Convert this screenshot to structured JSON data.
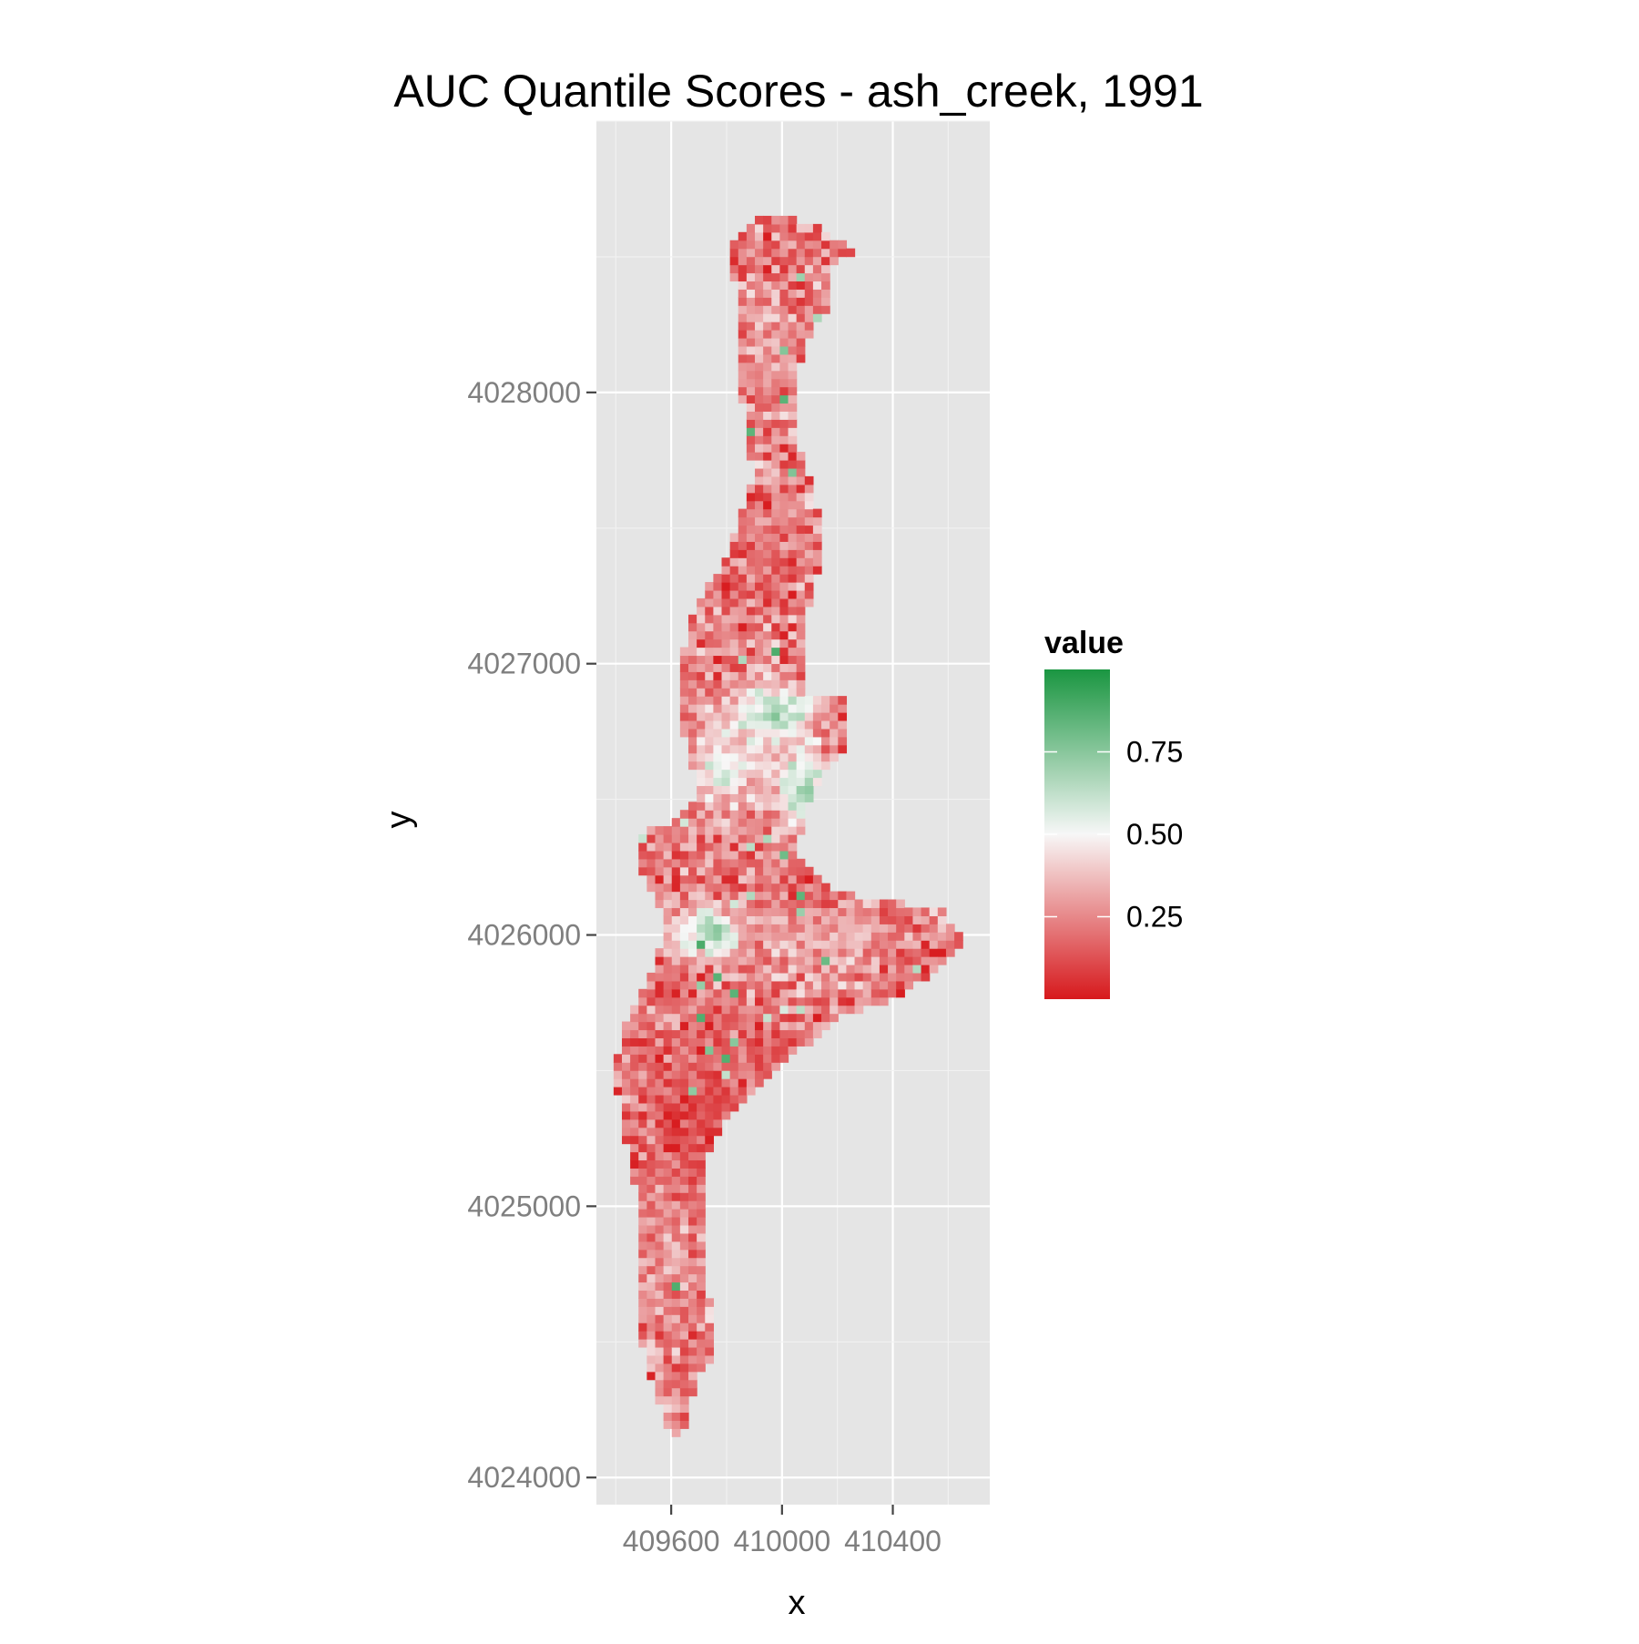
{
  "chart_data": {
    "type": "heatmap",
    "title": "AUC Quantile Scores - ash_creek, 1991",
    "xlabel": "x",
    "ylabel": "y",
    "xlim": [
      409330,
      410750
    ],
    "ylim": [
      4023900,
      4029000
    ],
    "x_ticks": [
      {
        "value": 409600,
        "label": "409600"
      },
      {
        "value": 410000,
        "label": "410000"
      },
      {
        "value": 410400,
        "label": "410400"
      }
    ],
    "y_ticks": [
      {
        "value": 4024000,
        "label": "4024000"
      },
      {
        "value": 4025000,
        "label": "4025000"
      },
      {
        "value": 4026000,
        "label": "4026000"
      },
      {
        "value": 4027000,
        "label": "4027000"
      },
      {
        "value": 4028000,
        "label": "4028000"
      }
    ],
    "grid": true,
    "cell_size": 30,
    "value_range": [
      0,
      1
    ],
    "colors": {
      "low": "#d7191c",
      "mid": "#f7f7f7",
      "high": "#1a9641",
      "midpoint": 0.5,
      "panel": "#e5e5e5",
      "grid": "#ffffff",
      "grid_minor": "#f2f2f2"
    },
    "legend": {
      "title": "value",
      "position": "right",
      "breaks": [
        {
          "value": 0.75,
          "label": "0.75"
        },
        {
          "value": 0.5,
          "label": "0.50"
        },
        {
          "value": 0.25,
          "label": "0.25"
        }
      ]
    },
    "outline": [
      [
        409943,
        4028650
      ],
      [
        410043,
        4028650
      ],
      [
        410043,
        4028610
      ],
      [
        410133,
        4028610
      ],
      [
        410203,
        4028560
      ],
      [
        410273,
        4028510
      ],
      [
        410213,
        4028500
      ],
      [
        410163,
        4028440
      ],
      [
        410163,
        4028300
      ],
      [
        410093,
        4028190
      ],
      [
        410053,
        4028050
      ],
      [
        410053,
        4027850
      ],
      [
        410093,
        4027700
      ],
      [
        410133,
        4027550
      ],
      [
        410133,
        4027350
      ],
      [
        410093,
        4027180
      ],
      [
        410093,
        4026870
      ],
      [
        410243,
        4026870
      ],
      [
        410243,
        4026700
      ],
      [
        410203,
        4026650
      ],
      [
        410143,
        4026580
      ],
      [
        410103,
        4026500
      ],
      [
        410073,
        4026400
      ],
      [
        410043,
        4026300
      ],
      [
        410203,
        4026150
      ],
      [
        410353,
        4026140
      ],
      [
        410503,
        4026100
      ],
      [
        410583,
        4026090
      ],
      [
        410653,
        4025970
      ],
      [
        410583,
        4025880
      ],
      [
        410463,
        4025800
      ],
      [
        410363,
        4025750
      ],
      [
        410213,
        4025700
      ],
      [
        410093,
        4025600
      ],
      [
        409993,
        4025500
      ],
      [
        409893,
        4025400
      ],
      [
        409783,
        4025300
      ],
      [
        409733,
        4025200
      ],
      [
        409733,
        4025000
      ],
      [
        409723,
        4024850
      ],
      [
        409713,
        4024700
      ],
      [
        409763,
        4024600
      ],
      [
        409753,
        4024450
      ],
      [
        409693,
        4024350
      ],
      [
        409643,
        4024150
      ],
      [
        409583,
        4024180
      ],
      [
        409553,
        4024300
      ],
      [
        409503,
        4024450
      ],
      [
        409473,
        4024650
      ],
      [
        409473,
        4024850
      ],
      [
        409473,
        4025050
      ],
      [
        409443,
        4025200
      ],
      [
        409423,
        4025350
      ],
      [
        409393,
        4025500
      ],
      [
        409443,
        4025700
      ],
      [
        409503,
        4025800
      ],
      [
        409563,
        4025950
      ],
      [
        409563,
        4026100
      ],
      [
        409503,
        4026200
      ],
      [
        409483,
        4026280
      ],
      [
        409473,
        4026370
      ],
      [
        409613,
        4026420
      ],
      [
        409683,
        4026480
      ],
      [
        409703,
        4026570
      ],
      [
        409663,
        4026650
      ],
      [
        409633,
        4026800
      ],
      [
        409633,
        4027000
      ],
      [
        409663,
        4027130
      ],
      [
        409713,
        4027250
      ],
      [
        409793,
        4027380
      ],
      [
        409843,
        4027520
      ],
      [
        409893,
        4027680
      ],
      [
        409883,
        4027850
      ],
      [
        409853,
        4028000
      ],
      [
        409843,
        4028200
      ],
      [
        409853,
        4028360
      ],
      [
        409813,
        4028460
      ],
      [
        409813,
        4028560
      ],
      [
        409873,
        4028610
      ]
    ],
    "regions": [
      {
        "x": 409860,
        "y": 4026680,
        "rx": 200,
        "ry": 200,
        "value": 0.5,
        "strength": 0.62
      },
      {
        "x": 409980,
        "y": 4026820,
        "rx": 150,
        "ry": 90,
        "value": 0.8,
        "strength": 0.75
      },
      {
        "x": 410080,
        "y": 4026540,
        "rx": 90,
        "ry": 140,
        "value": 0.82,
        "strength": 0.75
      },
      {
        "x": 409780,
        "y": 4026600,
        "rx": 90,
        "ry": 70,
        "value": 0.72,
        "strength": 0.65
      },
      {
        "x": 409750,
        "y": 4026010,
        "rx": 90,
        "ry": 80,
        "value": 0.88,
        "strength": 0.85
      },
      {
        "x": 409640,
        "y": 4025990,
        "rx": 80,
        "ry": 70,
        "value": 0.6,
        "strength": 0.6
      },
      {
        "x": 410150,
        "y": 4025980,
        "rx": 220,
        "ry": 130,
        "value": 0.45,
        "strength": 0.55
      },
      {
        "x": 409720,
        "y": 4025380,
        "rx": 180,
        "ry": 280,
        "value": 0.06,
        "strength": 0.75
      },
      {
        "x": 409600,
        "y": 4024800,
        "rx": 130,
        "ry": 270,
        "value": 0.33,
        "strength": 0.5
      },
      {
        "x": 409940,
        "y": 4028150,
        "rx": 110,
        "ry": 220,
        "value": 0.38,
        "strength": 0.45
      },
      {
        "x": 410100,
        "y": 4026250,
        "rx": 120,
        "ry": 100,
        "value": 0.05,
        "strength": 0.5
      }
    ]
  }
}
